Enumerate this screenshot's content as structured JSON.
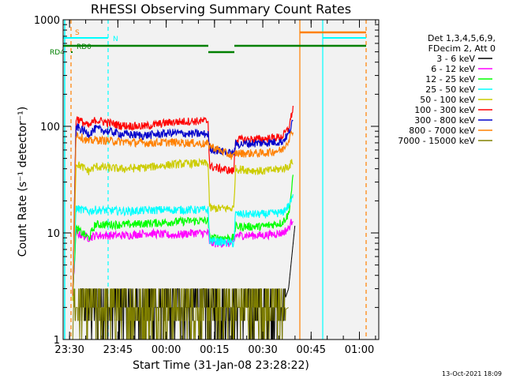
{
  "chart_data": {
    "type": "line",
    "title": "RHESSI Observing Summary Count Rates",
    "xlabel": "Start Time (31-Jan-08 23:28:22)",
    "ylabel": "Count Rate (s⁻¹ detector⁻¹)",
    "yscale": "log",
    "ylim": [
      1,
      1000
    ],
    "xlim_minutes": [
      0,
      98
    ],
    "x_ticks": [
      {
        "t": 2,
        "label": "23:30"
      },
      {
        "t": 17,
        "label": "23:45"
      },
      {
        "t": 32,
        "label": "00:00"
      },
      {
        "t": 47,
        "label": "00:15"
      },
      {
        "t": 62,
        "label": "00:30"
      },
      {
        "t": 77,
        "label": "00:45"
      },
      {
        "t": 92,
        "label": "01:00"
      }
    ],
    "y_ticks": [
      {
        "v": 1,
        "label": "1"
      },
      {
        "v": 10,
        "label": "10"
      },
      {
        "v": 100,
        "label": "100"
      },
      {
        "v": 1000,
        "label": "1000"
      }
    ],
    "legend_header": [
      "Det 1,3,4,5,6,9,",
      "FDecim 2, Att 0"
    ],
    "series": [
      {
        "name": "3 - 6 keV",
        "color": "#000000",
        "kind": "noise",
        "points": [
          [
            5,
            2
          ],
          [
            6,
            2
          ],
          [
            9,
            3
          ],
          [
            10,
            2
          ],
          [
            20,
            2
          ],
          [
            30,
            2
          ],
          [
            40,
            3
          ],
          [
            50,
            2
          ],
          [
            60,
            3
          ],
          [
            68,
            2
          ],
          [
            70,
            3
          ],
          [
            71,
            6
          ],
          [
            72,
            12
          ]
        ]
      },
      {
        "name": "6 - 12 keV",
        "color": "#ff00ff",
        "kind": "line",
        "points": [
          [
            3,
            2.5
          ],
          [
            4,
            10
          ],
          [
            8,
            9
          ],
          [
            10,
            9.5
          ],
          [
            12,
            9.5
          ],
          [
            20,
            9.5
          ],
          [
            26,
            10
          ],
          [
            34,
            9.5
          ],
          [
            40,
            10
          ],
          [
            45,
            10
          ],
          [
            45.5,
            8
          ],
          [
            53,
            8
          ],
          [
            53.5,
            9.5
          ],
          [
            62,
            9.5
          ],
          [
            68,
            10
          ],
          [
            70,
            11
          ],
          [
            71.5,
            14
          ]
        ]
      },
      {
        "name": "12 - 25 keV",
        "color": "#00ff00",
        "kind": "line",
        "points": [
          [
            3,
            2.5
          ],
          [
            4,
            11
          ],
          [
            8,
            9
          ],
          [
            10,
            12
          ],
          [
            20,
            12
          ],
          [
            30,
            12.5
          ],
          [
            40,
            13
          ],
          [
            45,
            13
          ],
          [
            45.5,
            9
          ],
          [
            53,
            9
          ],
          [
            53.5,
            11.5
          ],
          [
            62,
            11.5
          ],
          [
            68,
            12.5
          ],
          [
            70,
            15
          ],
          [
            71.5,
            35
          ]
        ]
      },
      {
        "name": "25 - 50 keV",
        "color": "#00ffff",
        "kind": "line",
        "points": [
          [
            3,
            2.5
          ],
          [
            4,
            17
          ],
          [
            8,
            16
          ],
          [
            10,
            16.5
          ],
          [
            20,
            16
          ],
          [
            30,
            16.5
          ],
          [
            40,
            16.5
          ],
          [
            45,
            16.5
          ],
          [
            45.5,
            8.5
          ],
          [
            53,
            8
          ],
          [
            53.5,
            15
          ],
          [
            62,
            15
          ],
          [
            68,
            15.5
          ],
          [
            70,
            18
          ],
          [
            71.5,
            22
          ]
        ]
      },
      {
        "name": "50 - 100 keV",
        "color": "#cccc00",
        "kind": "line",
        "points": [
          [
            3,
            2.5
          ],
          [
            4,
            45
          ],
          [
            8,
            38
          ],
          [
            10,
            42
          ],
          [
            18,
            40
          ],
          [
            25,
            41
          ],
          [
            34,
            44
          ],
          [
            40,
            45
          ],
          [
            45,
            45
          ],
          [
            45.5,
            17
          ],
          [
            53,
            17
          ],
          [
            53.5,
            40
          ],
          [
            62,
            38
          ],
          [
            68,
            40
          ],
          [
            70,
            42
          ],
          [
            71.5,
            48
          ]
        ]
      },
      {
        "name": "100 - 300 keV",
        "color": "#ff0000",
        "kind": "line",
        "points": [
          [
            3,
            2.5
          ],
          [
            4,
            120
          ],
          [
            8,
            100
          ],
          [
            10,
            115
          ],
          [
            18,
            102
          ],
          [
            25,
            100
          ],
          [
            34,
            110
          ],
          [
            40,
            112
          ],
          [
            45,
            112
          ],
          [
            45.5,
            42
          ],
          [
            53,
            38
          ],
          [
            53.5,
            75
          ],
          [
            62,
            76
          ],
          [
            68,
            80
          ],
          [
            70,
            95
          ],
          [
            71.5,
            155
          ]
        ]
      },
      {
        "name": "300 - 800 keV",
        "color": "#0000cc",
        "kind": "line",
        "points": [
          [
            3,
            2.5
          ],
          [
            4,
            100
          ],
          [
            8,
            85
          ],
          [
            10,
            95
          ],
          [
            18,
            85
          ],
          [
            25,
            82
          ],
          [
            34,
            87
          ],
          [
            40,
            85
          ],
          [
            45,
            85
          ],
          [
            45.5,
            62
          ],
          [
            53,
            55
          ],
          [
            53.5,
            68
          ],
          [
            62,
            70
          ],
          [
            68,
            72
          ],
          [
            70,
            85
          ],
          [
            71.5,
            115
          ]
        ]
      },
      {
        "name": "800 - 7000 keV",
        "color": "#ff8000",
        "kind": "line",
        "points": [
          [
            3,
            2.5
          ],
          [
            4,
            85
          ],
          [
            8,
            72
          ],
          [
            10,
            75
          ],
          [
            18,
            72
          ],
          [
            25,
            70
          ],
          [
            34,
            71
          ],
          [
            40,
            70
          ],
          [
            45,
            68
          ],
          [
            45.5,
            66
          ],
          [
            53,
            52
          ],
          [
            53.5,
            56
          ],
          [
            62,
            56
          ],
          [
            68,
            60
          ],
          [
            70,
            75
          ],
          [
            71.5,
            95
          ]
        ]
      },
      {
        "name": "7000 - 15000 keV",
        "color": "#808000",
        "kind": "noise",
        "points": [
          [
            3,
            3
          ],
          [
            5,
            2
          ],
          [
            10,
            1.5
          ],
          [
            15,
            1.8
          ],
          [
            20,
            2
          ],
          [
            30,
            1.8
          ],
          [
            40,
            2
          ],
          [
            50,
            2
          ],
          [
            55,
            1.5
          ],
          [
            60,
            2
          ],
          [
            65,
            1.6
          ],
          [
            70,
            2
          ]
        ]
      }
    ],
    "flags": [
      {
        "label": "S",
        "color": "#ff8000"
      },
      {
        "label": "N",
        "color": "#00ffff"
      },
      {
        "label": "RD0",
        "color": "#008000"
      },
      {
        "label": "RD4",
        "color": "#008000"
      }
    ],
    "timestamp": "13-Oct-2021 18:09"
  }
}
